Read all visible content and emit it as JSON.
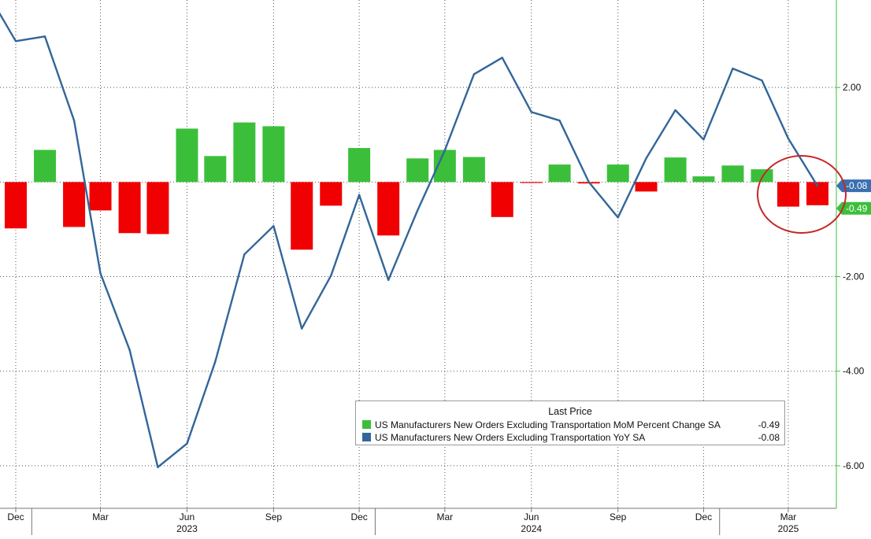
{
  "chart_data": {
    "type": "bar",
    "categories": [
      "Dec 2022",
      "Jan 2023",
      "Feb 2023",
      "Mar 2023",
      "Apr 2023",
      "May 2023",
      "Jun 2023",
      "Jul 2023",
      "Aug 2023",
      "Sep 2023",
      "Oct 2023",
      "Nov 2023",
      "Dec 2023",
      "Jan 2024",
      "Feb 2024",
      "Mar 2024",
      "Apr 2024",
      "May 2024",
      "Jun 2024",
      "Jul 2024",
      "Aug 2024",
      "Sep 2024",
      "Oct 2024",
      "Nov 2024",
      "Dec 2024",
      "Jan 2025",
      "Feb 2025",
      "Mar 2025",
      "Apr 2025"
    ],
    "series": [
      {
        "name": "US Manufacturers New Orders Excluding Transportation MoM Percent Change SA",
        "kind": "bar",
        "values": [
          -0.98,
          0.68,
          -0.95,
          -0.6,
          -1.08,
          -1.1,
          1.13,
          0.55,
          1.26,
          1.18,
          -1.43,
          -0.5,
          0.72,
          -1.13,
          0.5,
          0.68,
          0.53,
          -0.74,
          -0.02,
          0.37,
          -0.03,
          0.37,
          -0.2,
          0.52,
          0.12,
          0.35,
          0.27,
          -0.52,
          -0.49
        ]
      },
      {
        "name": "US Manufacturers New Orders Excluding Transportation YoY SA",
        "kind": "line",
        "points": [
          [
            "2022-11-15",
            4.0
          ],
          [
            "2022-12-15",
            2.98
          ],
          [
            "2023-01-15",
            3.08
          ],
          [
            "2023-02-15",
            1.3
          ],
          [
            "2023-03-15",
            -1.93
          ],
          [
            "2023-04-15",
            -3.55
          ],
          [
            "2023-05-15",
            -6.03
          ],
          [
            "2023-06-15",
            -5.53
          ],
          [
            "2023-07-15",
            -3.8
          ],
          [
            "2023-08-15",
            -1.53
          ],
          [
            "2023-09-15",
            -0.93
          ],
          [
            "2023-10-15",
            -3.1
          ],
          [
            "2023-11-15",
            -1.98
          ],
          [
            "2023-12-15",
            -0.27
          ],
          [
            "2024-01-15",
            -2.07
          ],
          [
            "2024-02-15",
            -0.6
          ],
          [
            "2024-03-15",
            0.67
          ],
          [
            "2024-04-15",
            2.28
          ],
          [
            "2024-05-15",
            2.63
          ],
          [
            "2024-06-15",
            1.48
          ],
          [
            "2024-07-15",
            1.3
          ],
          [
            "2024-08-15",
            0.0
          ],
          [
            "2024-09-15",
            -0.75
          ],
          [
            "2024-10-15",
            0.5
          ],
          [
            "2024-11-15",
            1.52
          ],
          [
            "2024-12-15",
            0.9
          ],
          [
            "2025-01-15",
            2.4
          ],
          [
            "2025-02-15",
            2.15
          ],
          [
            "2025-03-15",
            0.92
          ],
          [
            "2025-04-15",
            -0.08
          ]
        ]
      }
    ],
    "x_tick_labels": [
      "Dec",
      "Mar",
      "Jun",
      "Sep",
      "Dec",
      "Mar",
      "Jun",
      "Sep",
      "Dec",
      "Mar"
    ],
    "year_labels": [
      "2023",
      "2024",
      "2025"
    ],
    "y_tick_labels": [
      "2.00",
      "-2.00",
      "-4.00",
      "-6.00"
    ],
    "ylim": [
      -6.9,
      3.85
    ],
    "grid": true,
    "legend_position": "bottom-right",
    "colors": {
      "positive_bar": "#3bbf3b",
      "negative_bar": "#f00000",
      "line": "#336699",
      "right_axis": "#3bbf3b",
      "annotation_circle": "#c62828"
    },
    "end_markers": [
      {
        "series": "YoY",
        "label": "-0.08",
        "value": -0.08,
        "color": "#3a6fb0"
      },
      {
        "series": "MoM",
        "label": "-0.49",
        "value": -0.49,
        "color": "#3bbf3b"
      }
    ]
  },
  "legend": {
    "header": "Last Price",
    "items": [
      {
        "label": "US Manufacturers New Orders Excluding Transportation MoM Percent Change SA",
        "value": "-0.49",
        "color": "#3bbf3b"
      },
      {
        "label": "US Manufacturers New Orders Excluding Transportation YoY SA",
        "value": "-0.08",
        "color": "#336699"
      }
    ]
  }
}
